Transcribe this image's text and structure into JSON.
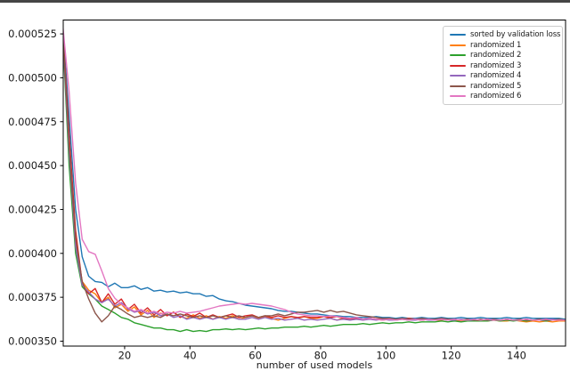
{
  "figure": {
    "background": "#ffffff",
    "top_rule_color": "#454545"
  },
  "chart_data": {
    "type": "line",
    "title": "",
    "xlabel": "number of used models",
    "ylabel": "",
    "grid": false,
    "legend_position": "upper right",
    "y_scale": 1e-06,
    "y_scale_note": "series values are in micro-units; actual loss = value * 0.000001",
    "xlim": [
      1.2,
      155
    ],
    "ylim_micro": [
      347.2,
      532.9
    ],
    "xticks": {
      "values": [
        20,
        40,
        60,
        80,
        100,
        120,
        140
      ],
      "labels": [
        "20",
        "40",
        "60",
        "80",
        "100",
        "120",
        "140"
      ]
    },
    "yticks": {
      "values_micro": [
        350,
        375,
        400,
        425,
        450,
        475,
        500,
        525
      ],
      "labels": [
        "0.000350",
        "0.000375",
        "0.000400",
        "0.000425",
        "0.000450",
        "0.000475",
        "0.000500",
        "0.000525"
      ]
    },
    "x": [
      1,
      3,
      5,
      7,
      9,
      11,
      13,
      15,
      17,
      19,
      21,
      23,
      25,
      27,
      29,
      31,
      33,
      35,
      37,
      39,
      41,
      43,
      45,
      47,
      49,
      51,
      53,
      55,
      57,
      59,
      61,
      63,
      65,
      67,
      69,
      71,
      73,
      75,
      77,
      79,
      81,
      83,
      85,
      87,
      89,
      91,
      93,
      95,
      97,
      99,
      101,
      103,
      105,
      107,
      109,
      111,
      113,
      115,
      117,
      119,
      121,
      123,
      125,
      127,
      129,
      131,
      133,
      135,
      137,
      139,
      141,
      143,
      145,
      147,
      149,
      151,
      153,
      155
    ],
    "series": [
      {
        "name": "sorted by validation loss",
        "color": "#1f77b4",
        "values_micro": [
          530,
          478,
          425,
          398,
          387,
          384,
          383.5,
          381,
          383,
          380.5,
          380.5,
          381.5,
          379.5,
          380.5,
          378.5,
          379,
          378,
          378.5,
          377.5,
          378,
          377,
          377,
          375.5,
          376,
          374,
          373,
          372.5,
          371.5,
          370.5,
          370,
          369.5,
          369,
          368.5,
          367.5,
          367,
          367,
          366.5,
          366,
          365.5,
          365.5,
          365,
          364.5,
          364.5,
          364,
          364,
          363.5,
          363.5,
          363.5,
          364,
          363.5,
          363.5,
          363,
          363.5,
          363,
          363,
          363.5,
          363,
          363,
          363.5,
          363,
          363,
          363.5,
          363,
          363,
          363.5,
          363,
          363,
          363,
          363.5,
          363,
          363,
          363.5,
          363,
          363,
          363,
          363,
          363,
          362.5
        ]
      },
      {
        "name": "randomized 1",
        "color": "#ff7f0e",
        "values_micro": [
          528,
          460,
          405,
          384,
          379,
          377,
          372,
          375,
          369,
          371,
          367,
          369.5,
          365,
          367.5,
          363.5,
          366,
          364.5,
          366.5,
          364,
          363,
          365,
          363,
          364.5,
          362.5,
          364,
          363,
          364.5,
          362.5,
          363.5,
          364.5,
          363,
          364,
          363,
          362,
          363,
          364,
          363,
          364,
          363,
          363,
          364,
          363,
          362,
          363,
          362,
          363,
          362,
          363,
          362.5,
          362,
          362.5,
          362,
          362.5,
          362,
          362.5,
          362,
          362.5,
          362,
          362,
          362.5,
          362,
          361.5,
          362,
          361.5,
          362,
          361.5,
          362,
          361.5,
          361.5,
          362,
          361.5,
          361,
          361.5,
          361,
          361.5,
          361,
          361.5,
          361.5
        ]
      },
      {
        "name": "randomized 2",
        "color": "#2ca02c",
        "values_micro": [
          526,
          450,
          400,
          381,
          377,
          374,
          370,
          368,
          366,
          363.5,
          362.5,
          360.5,
          359.5,
          358.5,
          357.5,
          357.5,
          356.5,
          356.5,
          355.5,
          356.5,
          355.5,
          356,
          355.5,
          356.5,
          356.5,
          357,
          356.5,
          357,
          356.5,
          357,
          357.5,
          357,
          357.5,
          357.5,
          358,
          358,
          358,
          358.5,
          358,
          358.5,
          359,
          358.5,
          359,
          359.5,
          359.5,
          359.5,
          360,
          359.5,
          360,
          360.5,
          360,
          360.5,
          360.5,
          361,
          360.5,
          361,
          361,
          361,
          361.5,
          361,
          361.5,
          361,
          361.5,
          361.5,
          361.5,
          361.5,
          362,
          361.5,
          362,
          361.5,
          362,
          361.5,
          362,
          362,
          361.5,
          362,
          362,
          362
        ]
      },
      {
        "name": "randomized 3",
        "color": "#d62728",
        "values_micro": [
          529,
          468,
          413,
          383,
          377,
          380,
          372,
          377,
          371,
          374,
          368,
          371,
          366,
          369,
          365,
          368,
          364.5,
          366.5,
          363.5,
          365.5,
          364,
          366,
          363.5,
          365,
          363.5,
          364.5,
          365.5,
          363.5,
          364.5,
          365,
          363.5,
          364.5,
          363.5,
          364.5,
          363.5,
          364,
          363.5,
          364,
          363.5,
          363.5,
          364,
          363.5,
          364,
          363,
          362.5,
          363,
          362.5,
          363,
          362.5,
          362.5,
          363,
          362.5,
          362.5,
          363,
          362.5,
          362,
          362.5,
          362,
          362.5,
          362,
          362.5,
          362,
          362.5,
          362,
          362,
          362.5,
          362,
          362,
          362.5,
          362,
          362,
          362.5,
          362,
          362,
          362.5,
          362,
          362,
          362
        ]
      },
      {
        "name": "randomized 4",
        "color": "#9467bd",
        "values_micro": [
          527,
          458,
          404,
          382,
          378,
          374,
          372,
          374,
          370,
          372,
          368.5,
          366.5,
          367.5,
          365.5,
          366.5,
          364.5,
          365.5,
          363.5,
          364.5,
          362.5,
          363.5,
          362.5,
          363.5,
          362.5,
          363.5,
          362.5,
          363.5,
          362.5,
          362.5,
          363.5,
          362.5,
          363.5,
          362.5,
          363,
          362,
          362.5,
          363,
          362,
          362.5,
          362,
          362.5,
          363,
          362,
          362.5,
          362,
          362.5,
          362,
          362.5,
          362,
          362.5,
          362,
          362,
          362.5,
          362,
          362,
          362.5,
          362,
          362,
          362.5,
          362,
          362,
          362.5,
          362,
          362,
          362.5,
          362,
          362,
          362,
          362.5,
          362,
          362,
          362.5,
          362,
          362,
          362,
          362.5,
          362,
          362
        ]
      },
      {
        "name": "randomized 5",
        "color": "#8c564b",
        "values_micro": [
          528,
          462,
          408,
          384,
          374,
          366,
          361,
          364.5,
          370,
          368,
          365.5,
          363.5,
          364.5,
          363.5,
          364.5,
          363.5,
          365.5,
          364.5,
          365.5,
          364.5,
          363.5,
          364.5,
          363.5,
          364.5,
          363.5,
          364.5,
          363.5,
          364.5,
          363.5,
          364.5,
          363.5,
          364.5,
          364.5,
          365.5,
          364.5,
          365.5,
          366.5,
          366.5,
          367,
          367.5,
          366.5,
          367.5,
          366.5,
          367,
          366,
          365,
          364.5,
          364,
          363.5,
          363,
          363,
          362.5,
          363,
          362.5,
          362.5,
          363,
          362.5,
          362.5,
          363,
          362.5,
          362.5,
          362,
          362.5,
          362,
          362.5,
          362,
          362.5,
          362,
          362.5,
          362,
          362.5,
          362,
          362,
          362.5,
          362,
          362,
          362.5,
          362
        ]
      },
      {
        "name": "randomized 6",
        "color": "#e377c2",
        "values_micro": [
          531,
          492,
          440,
          408,
          401,
          399.5,
          390,
          380,
          374.5,
          371,
          369,
          367,
          368,
          366,
          367,
          365.5,
          366.5,
          366,
          367,
          366,
          366.5,
          367,
          368,
          369,
          370,
          370.5,
          371,
          371.5,
          371,
          371.5,
          371,
          370.5,
          370,
          369,
          368,
          366.5,
          365.5,
          365,
          364.5,
          364.5,
          364,
          364.5,
          364,
          363.5,
          363,
          363.5,
          362.5,
          363,
          362.5,
          362,
          362.5,
          362,
          362.5,
          362,
          362.5,
          362,
          362.5,
          362,
          362.5,
          362,
          362.5,
          362,
          362,
          362.5,
          362,
          362.5,
          362,
          362,
          362.5,
          362,
          362,
          362.5,
          362,
          362,
          362.5,
          362,
          362,
          362
        ]
      }
    ]
  }
}
